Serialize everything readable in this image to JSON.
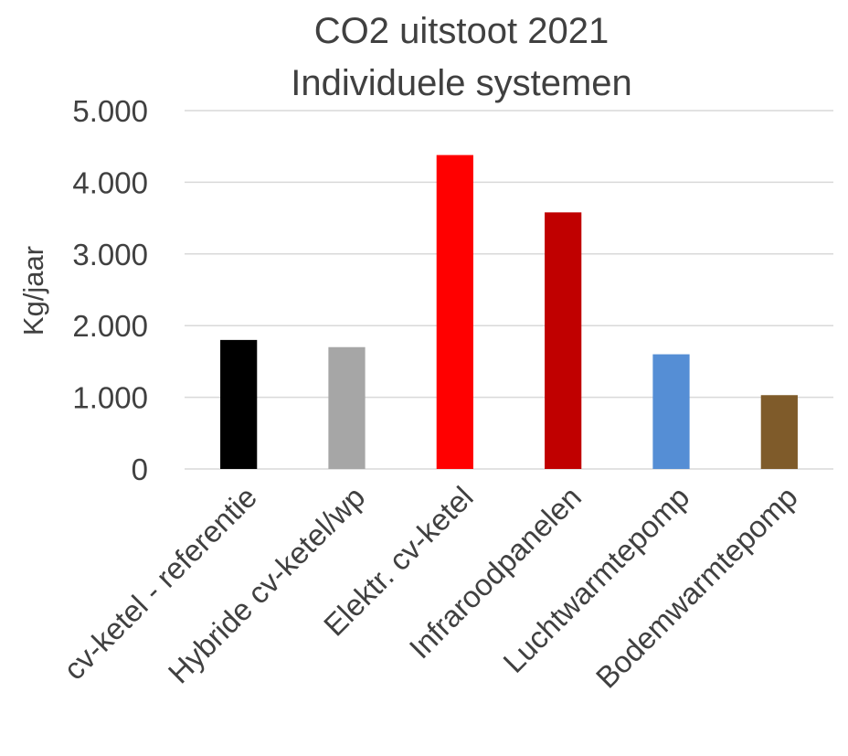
{
  "chart_data": {
    "type": "bar",
    "title_lines": [
      "CO2 uitstoot 2021",
      "Individuele systemen"
    ],
    "ylabel": "Kg/jaar",
    "xlabel": "",
    "ylim": [
      0,
      5000
    ],
    "yticks": [
      0,
      1000,
      2000,
      3000,
      4000,
      5000
    ],
    "ytick_labels": [
      "0",
      "1.000",
      "2.000",
      "3.000",
      "4.000",
      "5.000"
    ],
    "grid": true,
    "legend": "none",
    "categories": [
      "cv-ketel - referentie",
      "Hybride cv-ketel/wp",
      "Elektr. cv-ketel",
      "Infraroodpanelen",
      "Luchtwarmtepomp",
      "Bodemwarmtepomp"
    ],
    "values": [
      1800,
      1700,
      4380,
      3580,
      1600,
      1030
    ],
    "colors": [
      "#000000",
      "#a6a6a6",
      "#ff0000",
      "#c00000",
      "#558ed5",
      "#7f5b2a"
    ]
  }
}
